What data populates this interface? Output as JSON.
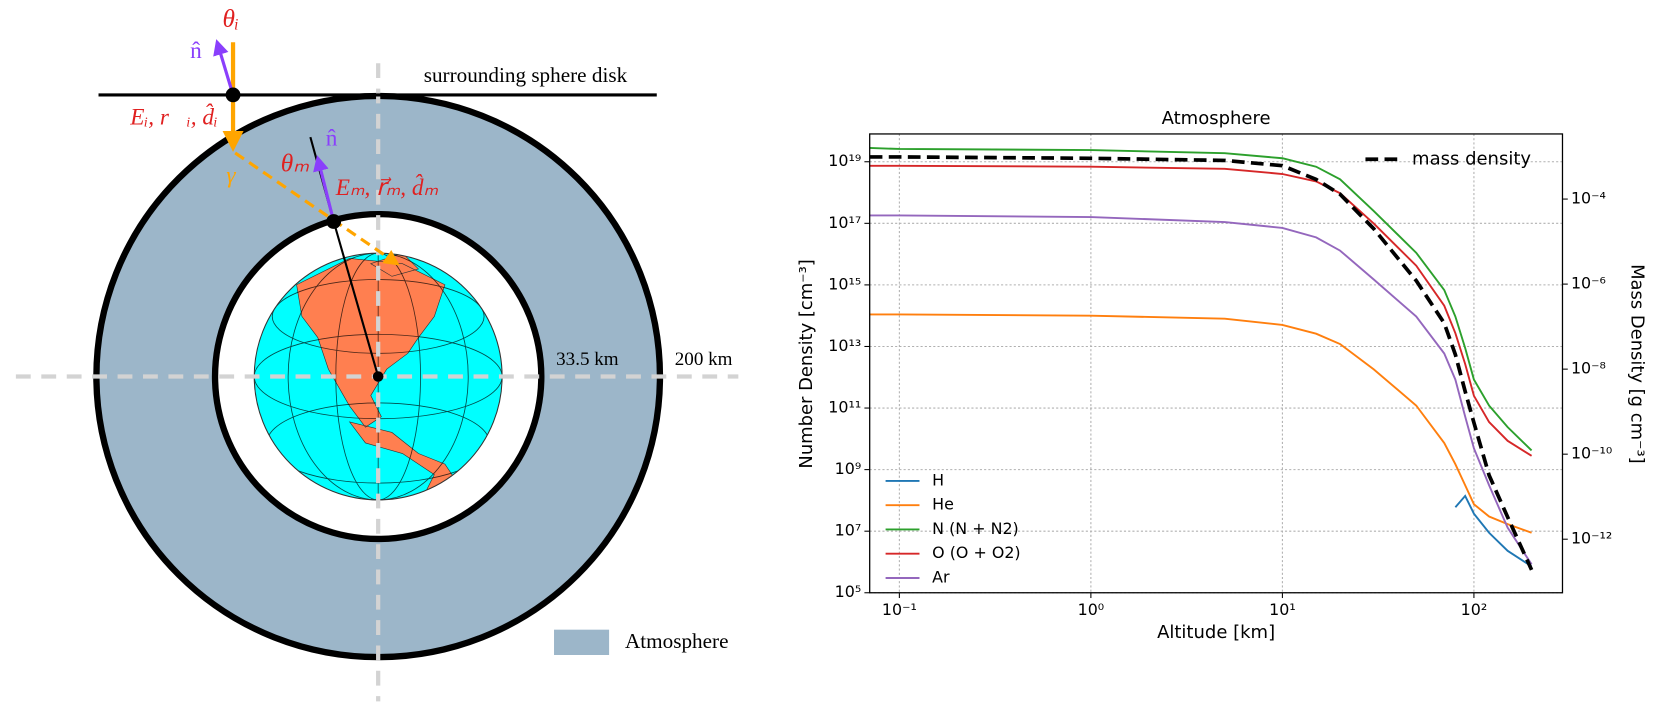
{
  "diagram": {
    "labels": {
      "theta_i": "θᵢ",
      "n_i": "n̂",
      "disk": "surrounding sphere disk",
      "incident": "Eᵢ, r⃗ᵢ, d̂ᵢ",
      "gamma": "γ",
      "theta_m": "θₘ",
      "n_m": "n̂",
      "medium": "Eₘ, r⃗ₘ, d̂ₘ",
      "r_inner": "33.5 km",
      "r_outer": "200 km",
      "legend": "Atmosphere"
    }
  },
  "chart_data": {
    "type": "line",
    "title": "Atmosphere",
    "xlabel": "Altitude [km]",
    "ylabel": "Number Density [cm⁻³]",
    "y2label": "Mass Density [g cm⁻³]",
    "xscale": "log",
    "yscale": "log",
    "y2scale": "log",
    "grid": true,
    "legend": "lower left",
    "legend2": "upper right",
    "x": [
      0.07,
      0.1,
      1,
      5,
      10,
      15,
      20,
      30,
      50,
      70,
      80,
      90,
      100,
      120,
      150,
      200
    ],
    "series": [
      {
        "name": "H",
        "color": "#1f77b4",
        "values": [
          null,
          null,
          null,
          null,
          null,
          null,
          null,
          null,
          null,
          null,
          60000000.0,
          140000000.0,
          37000000.0,
          8900000.0,
          2300000.0,
          720000.0
        ]
      },
      {
        "name": "He",
        "color": "#ff7f0e",
        "values": [
          110000000000000.0,
          110000000000000.0,
          100000000000000.0,
          80000000000000.0,
          50000000000000.0,
          26000000000000.0,
          12000000000000.0,
          1800000000000.0,
          120000000000.0,
          7300000000.0,
          1500000000.0,
          310000000.0,
          75000000.0,
          30000000.0,
          17000000.0,
          8900000.0
        ]
      },
      {
        "name": "N (N + N2)",
        "color": "#2ca02c",
        "values": [
          2.8e+19,
          2.6e+19,
          2.4e+19,
          1.9e+19,
          1.3e+19,
          6.9e+18,
          2.7e+18,
          2.5e+17,
          1.1e+16,
          680000000000000.0,
          94000000000000.0,
          8900000000000.0,
          840000000000.0,
          120000000000.0,
          24000000000.0,
          4200000000.0
        ]
      },
      {
        "name": "O (O + O2)",
        "color": "#d62728",
        "values": [
          7.4e+18,
          7.4e+18,
          6.9e+18,
          5.9e+18,
          4e+18,
          2.3e+18,
          9.5e+17,
          9.8e+16,
          4200000000000000.0,
          210000000000000.0,
          27000000000000.0,
          2700000000000.0,
          250000000000.0,
          35000000000.0,
          8600000000.0,
          2800000000.0
        ]
      },
      {
        "name": "Ar",
        "color": "#9467bd",
        "values": [
          1.8e+17,
          1.8e+17,
          1.6e+17,
          1.1e+17,
          7.1e+16,
          3.5e+16,
          1.3e+16,
          1500000000000000.0,
          94000000000000.0,
          5900000000000.0,
          840000000000.0,
          53000000000.0,
          4900000000.0,
          310000000.0,
          13000000.0,
          840000.0
        ]
      },
      {
        "name": "mass density",
        "color": "#000000",
        "dashed": true,
        "axis": "y2",
        "values": [
          0.00098,
          0.00098,
          0.00091,
          0.00081,
          0.00061,
          0.00029,
          0.00013,
          2e-05,
          1.2e-06,
          1.2e-07,
          2.2e-08,
          3e-09,
          5.5e-10,
          3.2e-11,
          3.3e-12,
          1.9e-13
        ]
      }
    ],
    "xlim": [
      0.07,
      290
    ],
    "ylim": [
      100000.0,
      8e+19
    ],
    "y2lim": [
      5.5e-14,
      0.0034
    ],
    "xticks": [
      {
        "value": 0.1,
        "label": "10⁻¹"
      },
      {
        "value": 1,
        "label": "10⁰"
      },
      {
        "value": 10,
        "label": "10¹"
      },
      {
        "value": 100,
        "label": "10²"
      }
    ],
    "yticks": [
      {
        "value": 100000.0,
        "label": "10⁵"
      },
      {
        "value": 10000000.0,
        "label": "10⁷"
      },
      {
        "value": 1000000000.0,
        "label": "10⁹"
      },
      {
        "value": 100000000000.0,
        "label": "10¹¹"
      },
      {
        "value": 10000000000000.0,
        "label": "10¹³"
      },
      {
        "value": 1000000000000000.0,
        "label": "10¹⁵"
      },
      {
        "value": 1e+17,
        "label": "10¹⁷"
      },
      {
        "value": 1e+19,
        "label": "10¹⁹"
      }
    ],
    "y2ticks": [
      {
        "value": 1e-12,
        "label": "10⁻¹²"
      },
      {
        "value": 1e-10,
        "label": "10⁻¹⁰"
      },
      {
        "value": 1e-08,
        "label": "10⁻⁸"
      },
      {
        "value": 1e-06,
        "label": "10⁻⁶"
      },
      {
        "value": 0.0001,
        "label": "10⁻⁴"
      }
    ]
  }
}
